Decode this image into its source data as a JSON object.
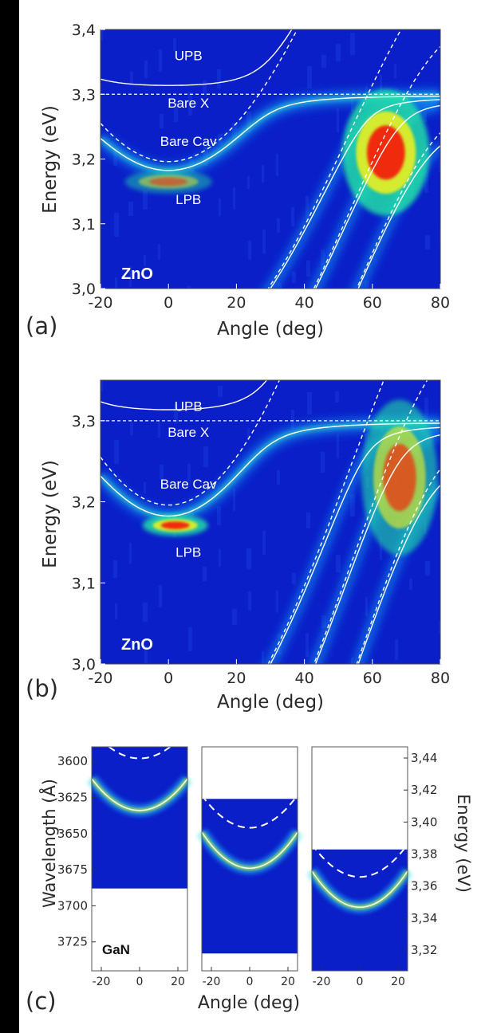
{
  "chart_data": [
    {
      "type": "heatmap",
      "panel_label": "(a)",
      "xlabel": "Angle (deg)",
      "ylabel": "Energy (eV)",
      "xlim": [
        -20,
        80
      ],
      "ylim": [
        3.0,
        3.4
      ],
      "x_ticks": [
        -20,
        0,
        20,
        40,
        60,
        80
      ],
      "x_tick_labels": [
        "-20",
        "0",
        "20",
        "40",
        "60",
        "80"
      ],
      "y_ticks": [
        3.0,
        3.1,
        3.2,
        3.3,
        3.4
      ],
      "y_tick_labels": [
        "3,0",
        "3,1",
        "3,2",
        "3,3",
        "3,4"
      ],
      "sample_label": "ZnO",
      "annotations": [
        {
          "text": "UPB",
          "x": 0,
          "y": 3.36
        },
        {
          "text": "Bare X",
          "x": 0,
          "y": 3.287
        },
        {
          "text": "Bare Cav",
          "x": 0,
          "y": 3.228
        },
        {
          "text": "LPB",
          "x": 0,
          "y": 3.138
        }
      ],
      "exciton_energy": 3.3,
      "cavity_modes": [
        {
          "E0": 3.196,
          "neff": 1.8
        },
        {
          "E0": 2.88,
          "neff": 1.75
        },
        {
          "E0": 2.75,
          "neff": 1.7
        },
        {
          "E0": 2.6,
          "neff": 1.65
        }
      ],
      "hotspots": [
        {
          "x": 0,
          "y": 3.165,
          "sx": 8,
          "sy": 0.006,
          "amp": 0.55
        },
        {
          "x": 64,
          "y": 3.21,
          "sx": 8,
          "sy": 0.05,
          "amp": 1.0
        }
      ]
    },
    {
      "type": "heatmap",
      "panel_label": "(b)",
      "xlabel": "Angle (deg)",
      "ylabel": "Energy (eV)",
      "xlim": [
        -20,
        80
      ],
      "ylim": [
        3.0,
        3.35
      ],
      "x_ticks": [
        -20,
        0,
        20,
        40,
        60,
        80
      ],
      "x_tick_labels": [
        "-20",
        "0",
        "20",
        "40",
        "60",
        "80"
      ],
      "y_ticks": [
        3.0,
        3.1,
        3.2,
        3.3
      ],
      "y_tick_labels": [
        "3,0",
        "3,1",
        "3,2",
        "3,3"
      ],
      "sample_label": "ZnO",
      "annotations": [
        {
          "text": "UPB",
          "x": 0,
          "y": 3.318
        },
        {
          "text": "Bare X",
          "x": 0,
          "y": 3.286
        },
        {
          "text": "Bare Cav",
          "x": 0,
          "y": 3.222
        },
        {
          "text": "LPB",
          "x": 0,
          "y": 3.138
        }
      ],
      "exciton_energy": 3.3,
      "cavity_modes": [
        {
          "E0": 3.196,
          "neff": 1.8
        },
        {
          "E0": 2.88,
          "neff": 1.75
        },
        {
          "E0": 2.75,
          "neff": 1.7
        },
        {
          "E0": 2.6,
          "neff": 1.65
        }
      ],
      "hotspots": [
        {
          "x": 2,
          "y": 3.171,
          "sx": 6,
          "sy": 0.004,
          "amp": 1.0
        },
        {
          "x": 68,
          "y": 3.23,
          "sx": 7,
          "sy": 0.05,
          "amp": 0.7
        }
      ]
    },
    {
      "type": "heatmap",
      "panel_label": "(c)",
      "xlabel": "Angle (deg)",
      "ylabel": "Wavelength (Å)",
      "y2label": "Energy (eV)",
      "sample_label": "GaN",
      "xlim": [
        -25,
        25
      ],
      "x_ticks": [
        -20,
        0,
        20
      ],
      "x_tick_labels": [
        "-20",
        "0",
        "20"
      ],
      "ylim_wavelength": [
        3590,
        3745
      ],
      "y_ticks": [
        3600,
        3625,
        3650,
        3675,
        3700,
        3725
      ],
      "y_tick_labels": [
        "3600",
        "3625",
        "3650",
        "3675",
        "3700",
        "3725"
      ],
      "y2_ticks": [
        3.44,
        3.42,
        3.4,
        3.38,
        3.36,
        3.34,
        3.32
      ],
      "y2_tick_labels": [
        "3,44",
        "3,42",
        "3,40",
        "3,38",
        "3,36",
        "3,34",
        "3,32"
      ],
      "subpanels": [
        {
          "data_wavelength_range": [
            3590,
            3688
          ],
          "lpb_wavelength_at_0": 3634,
          "curvature": 0.035,
          "cavity_wavelength_at_0": 3598
        },
        {
          "data_wavelength_range": [
            3626,
            3733
          ],
          "lpb_wavelength_at_0": 3674,
          "curvature": 0.04,
          "cavity_wavelength_at_0": 3646
        },
        {
          "data_wavelength_range": [
            3661,
            3745
          ],
          "lpb_wavelength_at_0": 3701,
          "curvature": 0.04,
          "cavity_wavelength_at_0": 3680
        }
      ]
    }
  ]
}
